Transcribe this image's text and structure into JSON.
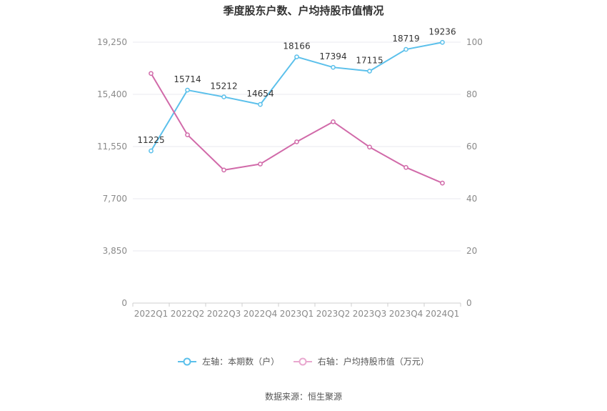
{
  "chart_data": {
    "type": "line",
    "title": "季度股东户数、户均持股市值情况",
    "categories": [
      "2022Q1",
      "2022Q2",
      "2022Q3",
      "2022Q4",
      "2023Q1",
      "2023Q2",
      "2023Q3",
      "2023Q4",
      "2024Q1"
    ],
    "series": [
      {
        "name": "左轴：本期数（户）",
        "axis": "left",
        "color": "#5bc0eb",
        "values": [
          11225,
          15714,
          15212,
          14654,
          18166,
          17394,
          17115,
          18719,
          19236
        ],
        "data_labels": [
          "11225",
          "15714",
          "15212",
          "14654",
          "18166",
          "17394",
          "17115",
          "18719",
          "19236"
        ]
      },
      {
        "name": "右轴：户均持股市值（万元）",
        "axis": "right",
        "color": "#d16aa9",
        "values": [
          88,
          64.5,
          51,
          53.3,
          61.8,
          69.5,
          59.8,
          52,
          46
        ]
      }
    ],
    "left_axis": {
      "range": [
        0,
        19250
      ],
      "ticks": [
        0,
        3850,
        7700,
        11550,
        15400,
        19250
      ],
      "tick_labels": [
        "0",
        "3,850",
        "7,700",
        "11,550",
        "15,400",
        "19,250"
      ]
    },
    "right_axis": {
      "range": [
        0,
        100
      ],
      "ticks": [
        0,
        20,
        40,
        60,
        80,
        100
      ],
      "tick_labels": [
        "0",
        "20",
        "40",
        "60",
        "80",
        "100"
      ]
    },
    "grid": true,
    "legend_position": "bottom"
  },
  "source": "数据来源：恒生聚源"
}
